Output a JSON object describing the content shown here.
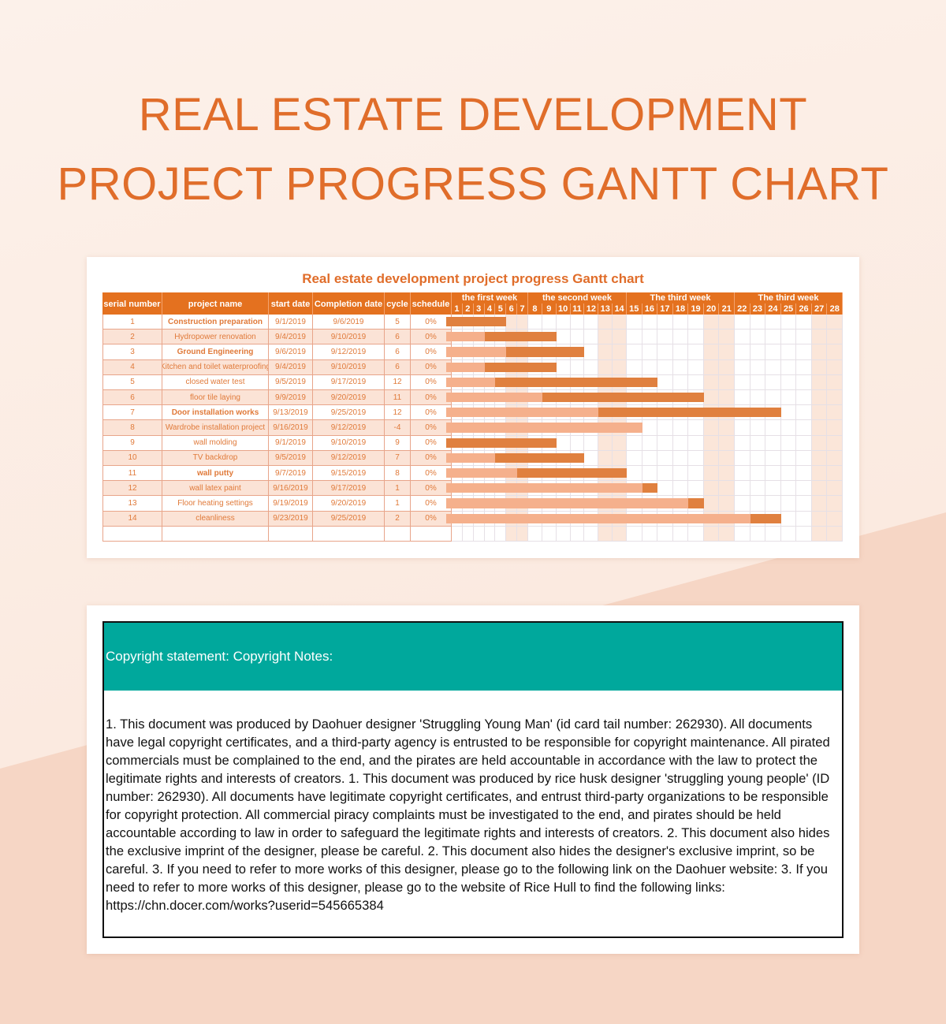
{
  "page_title": [
    "REAL ESTATE DEVELOPMENT",
    "PROJECT PROGRESS GANTT CHART"
  ],
  "gantt": {
    "title": "Real estate development project progress Gantt chart",
    "headers": {
      "serial": "serial number",
      "name": "project name",
      "start": "start date",
      "end": "Completion date",
      "cycle": "cycle",
      "schedule": "schedule"
    },
    "weeks": [
      "the first week",
      "the second week",
      "The third week",
      "The third week"
    ],
    "days": [
      1,
      2,
      3,
      4,
      5,
      6,
      7,
      8,
      9,
      10,
      11,
      12,
      13,
      14,
      15,
      16,
      17,
      18,
      19,
      20,
      21,
      22,
      23,
      24,
      25,
      26,
      27,
      28
    ],
    "weekend_days": [
      6,
      7,
      13,
      14,
      20,
      21,
      27,
      28
    ],
    "colors": {
      "header": "#e4711f",
      "bar_done": "#f5b08c",
      "bar_planned": "#e0803f",
      "text": "#e07a3a"
    },
    "rows": [
      {
        "n": "1",
        "name": "Construction preparation",
        "start": "9/1/2019",
        "end": "9/6/2019",
        "cycle": "5",
        "schedule": "0%",
        "bold": true
      },
      {
        "n": "2",
        "name": "Hydropower renovation",
        "start": "9/4/2019",
        "end": "9/10/2019",
        "cycle": "6",
        "schedule": "0%",
        "bold": false
      },
      {
        "n": "3",
        "name": "Ground Engineering",
        "start": "9/6/2019",
        "end": "9/12/2019",
        "cycle": "6",
        "schedule": "0%",
        "bold": true
      },
      {
        "n": "4",
        "name": "Kitchen and toilet waterproofing",
        "start": "9/4/2019",
        "end": "9/10/2019",
        "cycle": "6",
        "schedule": "0%",
        "bold": false
      },
      {
        "n": "5",
        "name": "closed water test",
        "start": "9/5/2019",
        "end": "9/17/2019",
        "cycle": "12",
        "schedule": "0%",
        "bold": false
      },
      {
        "n": "6",
        "name": "floor tile laying",
        "start": "9/9/2019",
        "end": "9/20/2019",
        "cycle": "11",
        "schedule": "0%",
        "bold": false
      },
      {
        "n": "7",
        "name": "Door installation works",
        "start": "9/13/2019",
        "end": "9/25/2019",
        "cycle": "12",
        "schedule": "0%",
        "bold": true
      },
      {
        "n": "8",
        "name": "Wardrobe installation project",
        "start": "9/16/2019",
        "end": "9/12/2019",
        "cycle": "-4",
        "schedule": "0%",
        "bold": false
      },
      {
        "n": "9",
        "name": "wall molding",
        "start": "9/1/2019",
        "end": "9/10/2019",
        "cycle": "9",
        "schedule": "0%",
        "bold": false
      },
      {
        "n": "10",
        "name": "TV backdrop",
        "start": "9/5/2019",
        "end": "9/12/2019",
        "cycle": "7",
        "schedule": "0%",
        "bold": false
      },
      {
        "n": "11",
        "name": "wall putty",
        "start": "9/7/2019",
        "end": "9/15/2019",
        "cycle": "8",
        "schedule": "0%",
        "bold": true
      },
      {
        "n": "12",
        "name": "wall latex paint",
        "start": "9/16/2019",
        "end": "9/17/2019",
        "cycle": "1",
        "schedule": "0%",
        "bold": false
      },
      {
        "n": "13",
        "name": "Floor heating settings",
        "start": "9/19/2019",
        "end": "9/20/2019",
        "cycle": "1",
        "schedule": "0%",
        "bold": false
      },
      {
        "n": "14",
        "name": "cleanliness",
        "start": "9/23/2019",
        "end": "9/25/2019",
        "cycle": "2",
        "schedule": "0%",
        "bold": false
      }
    ]
  },
  "copyright": {
    "heading": "Copyright statement: Copyright Notes:",
    "body": "1. This document was produced by Daohuer designer 'Struggling Young Man' (id card tail number: 262930). All documents have legal copyright certificates, and a third-party agency is entrusted to be responsible for copyright maintenance. All pirated commercials must be complained to the end, and the pirates are held accountable in accordance with the law to protect the legitimate rights and interests of creators. 1. This document was produced by rice husk designer 'struggling young people' (ID number: 262930). All documents have legitimate copyright certificates, and entrust third-party organizations to be responsible for copyright protection. All commercial piracy complaints must be investigated to the end, and pirates should be held accountable according to law in order to safeguard the legitimate rights and interests of creators. 2. This document also hides the exclusive imprint of the designer, please be careful. 2. This document also hides the designer's exclusive imprint, so be careful. 3. If you need to refer to more works of this designer, please go to the following link on the Daohuer website: 3. If you need to refer to more works of this designer, please go to the website of Rice Hull to find the following links: https://chn.docer.com/works?userid=545665384"
  }
}
